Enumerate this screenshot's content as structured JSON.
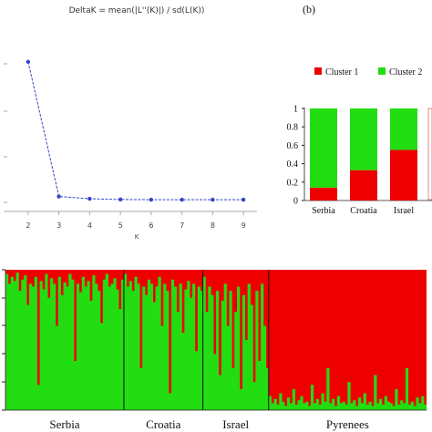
{
  "colors": {
    "cluster1": "#ee0000",
    "cluster2": "#22dd11",
    "delta_line": "#3344cc"
  },
  "chart_data": [
    {
      "type": "line",
      "title": "DeltaK = mean(|L''(K)|) / sd(L(K))",
      "xlabel": "K",
      "x": [
        2,
        3,
        4,
        5,
        6,
        7,
        8,
        9
      ],
      "series": [
        {
          "values": [
            600,
            15,
            5,
            2,
            1,
            1,
            1,
            1
          ]
        }
      ],
      "xlim": [
        1.5,
        9.5
      ],
      "ylim": [
        -50,
        750
      ],
      "grid": false
    },
    {
      "type": "bar",
      "panel_label": "(b)",
      "categories": [
        "Serbia",
        "Croatia",
        "Israel"
      ],
      "series": [
        {
          "name": "Cluster 1",
          "values": [
            0.14,
            0.33,
            0.55
          ]
        },
        {
          "name": "Cluster 2",
          "values": [
            0.86,
            0.67,
            0.45
          ]
        }
      ],
      "yticks": [
        "0",
        "0.2",
        "0.4",
        "0.6",
        "0.8",
        "1"
      ],
      "ylim": [
        0,
        1
      ],
      "stacked": true,
      "legend": "top"
    },
    {
      "type": "bar",
      "stacked": true,
      "categories": [
        "Serbia",
        "Croatia",
        "Israel",
        "Pyrenees"
      ],
      "group_sizes": [
        45,
        30,
        25,
        60
      ],
      "series_colors": [
        "cluster2",
        "cluster1"
      ],
      "green_fraction": [
        0.97,
        0.9,
        0.95,
        0.92,
        0.98,
        0.85,
        0.93,
        0.96,
        0.75,
        0.9,
        0.88,
        0.95,
        0.18,
        0.92,
        0.86,
        0.97,
        0.8,
        0.94,
        0.9,
        0.6,
        0.95,
        0.82,
        0.91,
        0.88,
        0.97,
        0.93,
        0.35,
        0.9,
        0.84,
        0.95,
        0.88,
        0.92,
        0.78,
        0.96,
        0.9,
        0.85,
        0.62,
        0.93,
        0.97,
        0.88,
        0.9,
        0.94,
        0.86,
        0.72,
        0.93,
        0.97,
        0.88,
        0.92,
        0.85,
        0.95,
        0.9,
        0.3,
        0.88,
        0.82,
        0.93,
        0.9,
        0.77,
        0.88,
        0.95,
        0.6,
        0.9,
        0.85,
        0.12,
        0.93,
        0.88,
        0.7,
        0.9,
        0.55,
        0.86,
        0.92,
        0.8,
        0.9,
        0.42,
        0.88,
        0.85,
        0.95,
        0.7,
        0.88,
        0.82,
        0.4,
        0.85,
        0.25,
        0.78,
        0.9,
        0.6,
        0.85,
        0.3,
        0.7,
        0.88,
        0.15,
        0.82,
        0.5,
        0.9,
        0.75,
        0.2,
        0.85,
        0.35,
        0.9,
        0.6,
        0.3,
        0.1,
        0.05,
        0.08,
        0.04,
        0.12,
        0.06,
        0.03,
        0.09,
        0.05,
        0.15,
        0.04,
        0.07,
        0.1,
        0.05,
        0.06,
        0.03,
        0.18,
        0.05,
        0.08,
        0.04,
        0.12,
        0.06,
        0.3,
        0.05,
        0.08,
        0.03,
        0.1,
        0.05,
        0.06,
        0.04,
        0.2,
        0.05,
        0.07,
        0.03,
        0.09,
        0.05,
        0.12,
        0.04,
        0.06,
        0.03,
        0.25,
        0.05,
        0.08,
        0.04,
        0.1,
        0.06,
        0.05,
        0.03,
        0.15,
        0.04,
        0.07,
        0.05,
        0.3,
        0.04,
        0.06,
        0.03,
        0.09,
        0.05,
        0.1,
        0.04
      ],
      "ylim": [
        0,
        1
      ]
    }
  ]
}
